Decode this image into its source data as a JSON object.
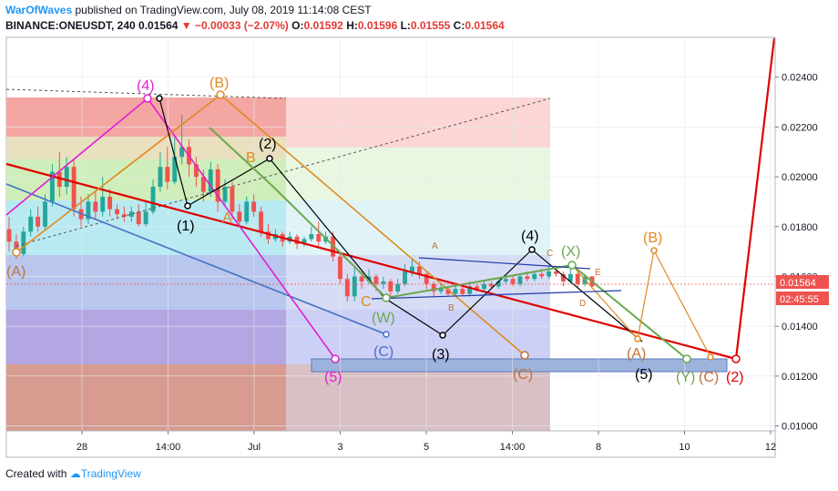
{
  "header": {
    "author": "WarOfWaves",
    "published_text": "published on TradingView.com, July 08, 2019 11:14:08 CEST",
    "symbol": "BINANCE:ONEUSDT, 240",
    "last": "0.01564",
    "change": "−0.00033 (−2.07%)",
    "open_label": "O:",
    "open": "0.01592",
    "high_label": "H:",
    "high": "0.01596",
    "low_label": "L:",
    "low": "0.01555",
    "close_label": "C:",
    "close": "0.01564"
  },
  "price_badge": {
    "price": "0.01564",
    "timer": "02:45:55"
  },
  "footer": {
    "created_with": "Created with",
    "brand": "TradingView"
  },
  "colors": {
    "up": "#26a69a",
    "down": "#ef5350",
    "wave_red": "#e00000",
    "magenta": "#e020d0",
    "orange": "#e08a1e",
    "green": "#6aa84f",
    "blue": "#4472c4",
    "black": "#000000",
    "brown": "#c2703a"
  },
  "chart_data": {
    "type": "candlestick",
    "ylim": [
      0.0098,
      0.0256
    ],
    "y_ticks": [
      "0.02400",
      "0.02200",
      "0.02000",
      "0.01800",
      "0.01600",
      "0.01400",
      "0.01200",
      "0.01000"
    ],
    "x_ticks": [
      "28",
      "14:00",
      "Jul",
      "3",
      "5",
      "14:00",
      "8",
      "10",
      "12"
    ],
    "candles": [
      {
        "o": 0.0179,
        "c": 0.0174,
        "h": 0.0184,
        "l": 0.017
      },
      {
        "o": 0.0174,
        "c": 0.0169,
        "h": 0.0177,
        "l": 0.0167
      },
      {
        "o": 0.0169,
        "c": 0.0178,
        "h": 0.018,
        "l": 0.0168
      },
      {
        "o": 0.0178,
        "c": 0.0184,
        "h": 0.0187,
        "l": 0.0176
      },
      {
        "o": 0.0184,
        "c": 0.018,
        "h": 0.0188,
        "l": 0.0178
      },
      {
        "o": 0.018,
        "c": 0.019,
        "h": 0.0193,
        "l": 0.0179
      },
      {
        "o": 0.019,
        "c": 0.0202,
        "h": 0.0205,
        "l": 0.0188
      },
      {
        "o": 0.0202,
        "c": 0.0196,
        "h": 0.021,
        "l": 0.0192
      },
      {
        "o": 0.0196,
        "c": 0.0204,
        "h": 0.0208,
        "l": 0.0193
      },
      {
        "o": 0.0204,
        "c": 0.0187,
        "h": 0.0207,
        "l": 0.0184
      },
      {
        "o": 0.0187,
        "c": 0.0183,
        "h": 0.0192,
        "l": 0.018
      },
      {
        "o": 0.0183,
        "c": 0.019,
        "h": 0.0193,
        "l": 0.0181
      },
      {
        "o": 0.019,
        "c": 0.0186,
        "h": 0.0194,
        "l": 0.0183
      },
      {
        "o": 0.0186,
        "c": 0.0192,
        "h": 0.02,
        "l": 0.0184
      },
      {
        "o": 0.0192,
        "c": 0.0187,
        "h": 0.0195,
        "l": 0.0184
      },
      {
        "o": 0.0187,
        "c": 0.0185,
        "h": 0.0189,
        "l": 0.0183
      },
      {
        "o": 0.0185,
        "c": 0.0184,
        "h": 0.0188,
        "l": 0.0182
      },
      {
        "o": 0.0184,
        "c": 0.0186,
        "h": 0.0188,
        "l": 0.0182
      },
      {
        "o": 0.0186,
        "c": 0.0181,
        "h": 0.0189,
        "l": 0.018
      },
      {
        "o": 0.0181,
        "c": 0.0186,
        "h": 0.019,
        "l": 0.018
      },
      {
        "o": 0.0186,
        "c": 0.0196,
        "h": 0.0199,
        "l": 0.0185
      },
      {
        "o": 0.0196,
        "c": 0.0204,
        "h": 0.021,
        "l": 0.0194
      },
      {
        "o": 0.0204,
        "c": 0.0198,
        "h": 0.0212,
        "l": 0.0195
      },
      {
        "o": 0.0198,
        "c": 0.0208,
        "h": 0.0216,
        "l": 0.0197
      },
      {
        "o": 0.0208,
        "c": 0.0212,
        "h": 0.0225,
        "l": 0.0205
      },
      {
        "o": 0.0212,
        "c": 0.0205,
        "h": 0.0215,
        "l": 0.02
      },
      {
        "o": 0.0205,
        "c": 0.02,
        "h": 0.0208,
        "l": 0.0196
      },
      {
        "o": 0.02,
        "c": 0.0194,
        "h": 0.0203,
        "l": 0.019
      },
      {
        "o": 0.0194,
        "c": 0.0203,
        "h": 0.0206,
        "l": 0.0192
      },
      {
        "o": 0.0203,
        "c": 0.019,
        "h": 0.0205,
        "l": 0.0186
      },
      {
        "o": 0.019,
        "c": 0.0196,
        "h": 0.0199,
        "l": 0.0188
      },
      {
        "o": 0.0196,
        "c": 0.0186,
        "h": 0.0198,
        "l": 0.0183
      },
      {
        "o": 0.0186,
        "c": 0.0182,
        "h": 0.0189,
        "l": 0.018
      },
      {
        "o": 0.0182,
        "c": 0.019,
        "h": 0.0192,
        "l": 0.0181
      },
      {
        "o": 0.019,
        "c": 0.0186,
        "h": 0.0193,
        "l": 0.0184
      },
      {
        "o": 0.0186,
        "c": 0.0178,
        "h": 0.0188,
        "l": 0.0176
      },
      {
        "o": 0.0178,
        "c": 0.0175,
        "h": 0.0181,
        "l": 0.0173
      },
      {
        "o": 0.0175,
        "c": 0.0177,
        "h": 0.0179,
        "l": 0.0174
      },
      {
        "o": 0.0177,
        "c": 0.0174,
        "h": 0.0178,
        "l": 0.0172
      },
      {
        "o": 0.0174,
        "c": 0.0176,
        "h": 0.0178,
        "l": 0.0173
      },
      {
        "o": 0.0176,
        "c": 0.0173,
        "h": 0.0177,
        "l": 0.0171
      },
      {
        "o": 0.0173,
        "c": 0.0175,
        "h": 0.0176,
        "l": 0.0172
      },
      {
        "o": 0.0175,
        "c": 0.0177,
        "h": 0.018,
        "l": 0.0174
      },
      {
        "o": 0.0177,
        "c": 0.0174,
        "h": 0.0182,
        "l": 0.0172
      },
      {
        "o": 0.0174,
        "c": 0.0176,
        "h": 0.0178,
        "l": 0.0173
      },
      {
        "o": 0.0176,
        "c": 0.0168,
        "h": 0.0178,
        "l": 0.0166
      },
      {
        "o": 0.0168,
        "c": 0.0159,
        "h": 0.017,
        "l": 0.0157
      },
      {
        "o": 0.0159,
        "c": 0.0152,
        "h": 0.0161,
        "l": 0.015
      },
      {
        "o": 0.0152,
        "c": 0.016,
        "h": 0.0164,
        "l": 0.015
      },
      {
        "o": 0.016,
        "c": 0.0158,
        "h": 0.0162,
        "l": 0.0155
      },
      {
        "o": 0.0158,
        "c": 0.016,
        "h": 0.0163,
        "l": 0.0157
      },
      {
        "o": 0.016,
        "c": 0.0157,
        "h": 0.0161,
        "l": 0.0154
      },
      {
        "o": 0.0157,
        "c": 0.0158,
        "h": 0.016,
        "l": 0.0155
      },
      {
        "o": 0.0158,
        "c": 0.0154,
        "h": 0.0159,
        "l": 0.0152
      },
      {
        "o": 0.0154,
        "c": 0.0157,
        "h": 0.0159,
        "l": 0.0153
      },
      {
        "o": 0.0157,
        "c": 0.0162,
        "h": 0.0165,
        "l": 0.0156
      },
      {
        "o": 0.0162,
        "c": 0.0164,
        "h": 0.0167,
        "l": 0.016
      },
      {
        "o": 0.0164,
        "c": 0.0161,
        "h": 0.0166,
        "l": 0.0159
      },
      {
        "o": 0.0161,
        "c": 0.0157,
        "h": 0.0162,
        "l": 0.0155
      },
      {
        "o": 0.0157,
        "c": 0.0154,
        "h": 0.0158,
        "l": 0.0152
      },
      {
        "o": 0.0154,
        "c": 0.0155,
        "h": 0.0157,
        "l": 0.0153
      },
      {
        "o": 0.0155,
        "c": 0.0153,
        "h": 0.0156,
        "l": 0.0152
      },
      {
        "o": 0.0153,
        "c": 0.0155,
        "h": 0.0156,
        "l": 0.0152
      },
      {
        "o": 0.0155,
        "c": 0.0153,
        "h": 0.0156,
        "l": 0.0152
      },
      {
        "o": 0.0153,
        "c": 0.0156,
        "h": 0.0158,
        "l": 0.0152
      },
      {
        "o": 0.0156,
        "c": 0.0155,
        "h": 0.0157,
        "l": 0.0154
      },
      {
        "o": 0.0155,
        "c": 0.0157,
        "h": 0.0158,
        "l": 0.0154
      },
      {
        "o": 0.0157,
        "c": 0.0156,
        "h": 0.0158,
        "l": 0.0155
      },
      {
        "o": 0.0156,
        "c": 0.0158,
        "h": 0.0159,
        "l": 0.0155
      },
      {
        "o": 0.0158,
        "c": 0.0159,
        "h": 0.0161,
        "l": 0.0157
      },
      {
        "o": 0.0159,
        "c": 0.0157,
        "h": 0.016,
        "l": 0.0156
      },
      {
        "o": 0.0157,
        "c": 0.016,
        "h": 0.0161,
        "l": 0.0156
      },
      {
        "o": 0.016,
        "c": 0.0159,
        "h": 0.0162,
        "l": 0.0158
      },
      {
        "o": 0.0159,
        "c": 0.0161,
        "h": 0.0162,
        "l": 0.0158
      },
      {
        "o": 0.0161,
        "c": 0.016,
        "h": 0.0163,
        "l": 0.0159
      },
      {
        "o": 0.016,
        "c": 0.0162,
        "h": 0.0164,
        "l": 0.0159
      },
      {
        "o": 0.0162,
        "c": 0.0161,
        "h": 0.0164,
        "l": 0.016
      },
      {
        "o": 0.0161,
        "c": 0.0158,
        "h": 0.0162,
        "l": 0.0156
      },
      {
        "o": 0.0158,
        "c": 0.0161,
        "h": 0.0163,
        "l": 0.0157
      },
      {
        "o": 0.0161,
        "c": 0.0157,
        "h": 0.0162,
        "l": 0.0155
      },
      {
        "o": 0.0157,
        "c": 0.016,
        "h": 0.0161,
        "l": 0.0156
      },
      {
        "o": 0.016,
        "c": 0.0156,
        "h": 0.016,
        "l": 0.0155
      }
    ],
    "wave_labels": [
      "(4)",
      "(B)",
      "(2)",
      "B",
      "A",
      "(1)",
      "(A)",
      "A",
      "(4)",
      "C",
      "(X)",
      "(B)",
      "E",
      "D",
      "C",
      "(W)",
      "B",
      "(C)",
      "(3)",
      "(5)",
      "(C)",
      "(A)",
      "(5)",
      "(Y)",
      "(C)",
      "(2)"
    ]
  }
}
